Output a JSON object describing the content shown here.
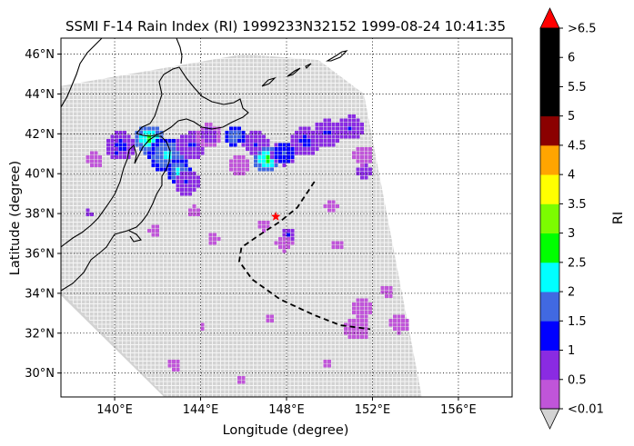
{
  "chart_data": {
    "type": "heatmap",
    "title": "SSMI F-14 Rain Index (RI) 1999233N32152 1999-08-24 10:41:35",
    "xlabel": "Longitude (degree)",
    "ylabel": "Latitude (degree)",
    "xlim": [
      137.5,
      158.5
    ],
    "ylim": [
      28.8,
      46.8
    ],
    "x_ticks": [
      {
        "value": 140,
        "label": "140°E"
      },
      {
        "value": 144,
        "label": "144°E"
      },
      {
        "value": 148,
        "label": "148°E"
      },
      {
        "value": 152,
        "label": "152°E"
      },
      {
        "value": 156,
        "label": "156°E"
      }
    ],
    "y_ticks": [
      {
        "value": 30,
        "label": "30°N"
      },
      {
        "value": 32,
        "label": "32°N"
      },
      {
        "value": 34,
        "label": "34°N"
      },
      {
        "value": 36,
        "label": "36°N"
      },
      {
        "value": 38,
        "label": "38°N"
      },
      {
        "value": 40,
        "label": "40°N"
      },
      {
        "value": 42,
        "label": "42°N"
      },
      {
        "value": 44,
        "label": "44°N"
      },
      {
        "value": 46,
        "label": "46°N"
      }
    ],
    "grid": "dotted",
    "colorbar": {
      "label": "RI",
      "boundaries": [
        0.01,
        0.5,
        1,
        1.5,
        2,
        2.5,
        3,
        3.5,
        4,
        4.5,
        5,
        5.5,
        6,
        6.5
      ],
      "tick_labels": [
        "<0.01",
        "0.5",
        "1",
        "1.5",
        "2",
        "2.5",
        "3",
        "3.5",
        "4",
        "4.5",
        "5",
        "5.5",
        "6",
        ">6.5"
      ],
      "colors": [
        "#c055d9",
        "#8a2be2",
        "#0000ff",
        "#4169e1",
        "#00ffff",
        "#00ff00",
        "#7cfc00",
        "#ffff00",
        "#ffa500",
        "#8b0000",
        "#000000",
        "#000000",
        "#000000"
      ],
      "under_color": "#d3d3d3",
      "over_color": "#ff0000"
    },
    "swath": {
      "corners": [
        [
          137.5,
          44.4
        ],
        [
          146.0,
          46.0
        ],
        [
          149.5,
          45.7
        ],
        [
          151.6,
          44.0
        ],
        [
          154.3,
          28.8
        ],
        [
          142.3,
          28.8
        ],
        [
          137.5,
          33.9
        ]
      ],
      "fill_color": "#d3d3d3"
    },
    "track": {
      "points": [
        [
          149.3,
          39.6
        ],
        [
          148.5,
          38.3
        ],
        [
          147.7,
          37.6
        ],
        [
          146.7,
          36.9
        ],
        [
          145.9,
          36.3
        ],
        [
          145.8,
          35.6
        ],
        [
          146.4,
          34.7
        ],
        [
          147.7,
          33.7
        ],
        [
          149.3,
          32.9
        ],
        [
          150.5,
          32.4
        ],
        [
          151.9,
          32.2
        ]
      ],
      "color": "#000000"
    },
    "storm_center": {
      "lon": 147.5,
      "lat": 37.85,
      "color": "#ff0000"
    },
    "rain_areas": [
      {
        "lon": 140.2,
        "lat": 41.5,
        "r": 0.7,
        "value": 1.2
      },
      {
        "lon": 141.5,
        "lat": 41.8,
        "r": 0.7,
        "value": 2.8
      },
      {
        "lon": 142.4,
        "lat": 41.0,
        "r": 0.9,
        "value": 2.3
      },
      {
        "lon": 142.9,
        "lat": 40.2,
        "r": 0.6,
        "value": 2.2
      },
      {
        "lon": 143.3,
        "lat": 39.6,
        "r": 0.6,
        "value": 1.1
      },
      {
        "lon": 143.5,
        "lat": 41.5,
        "r": 0.7,
        "value": 1.1
      },
      {
        "lon": 144.3,
        "lat": 42.0,
        "r": 0.6,
        "value": 0.7
      },
      {
        "lon": 145.5,
        "lat": 42.0,
        "r": 0.5,
        "value": 2.1
      },
      {
        "lon": 146.5,
        "lat": 41.6,
        "r": 0.6,
        "value": 1.1
      },
      {
        "lon": 147.0,
        "lat": 40.8,
        "r": 0.6,
        "value": 2.8
      },
      {
        "lon": 147.8,
        "lat": 41.1,
        "r": 0.6,
        "value": 1.6
      },
      {
        "lon": 148.8,
        "lat": 41.7,
        "r": 0.7,
        "value": 1.2
      },
      {
        "lon": 149.8,
        "lat": 42.1,
        "r": 0.7,
        "value": 1.1
      },
      {
        "lon": 150.9,
        "lat": 42.4,
        "r": 0.6,
        "value": 1.1
      },
      {
        "lon": 151.5,
        "lat": 40.2,
        "r": 0.4,
        "value": 1.1
      },
      {
        "lon": 148.0,
        "lat": 37.0,
        "r": 0.35,
        "value": 1.1
      },
      {
        "lon": 138.7,
        "lat": 38.1,
        "r": 0.2,
        "value": 1.1
      },
      {
        "lon": 140.0,
        "lat": 41.1,
        "r": 0.25,
        "value": 1.1
      },
      {
        "lon": 147.8,
        "lat": 36.6,
        "r": 0.4,
        "value": 0.3
      },
      {
        "lon": 151.4,
        "lat": 33.3,
        "r": 0.5,
        "value": 0.3
      },
      {
        "lon": 151.2,
        "lat": 32.3,
        "r": 0.6,
        "value": 0.3
      },
      {
        "lon": 153.2,
        "lat": 32.6,
        "r": 0.5,
        "value": 0.3
      },
      {
        "lon": 152.6,
        "lat": 34.2,
        "r": 0.3,
        "value": 0.3
      },
      {
        "lon": 141.8,
        "lat": 37.3,
        "r": 0.3,
        "value": 0.3
      },
      {
        "lon": 139.0,
        "lat": 40.8,
        "r": 0.4,
        "value": 0.3
      },
      {
        "lon": 143.6,
        "lat": 38.2,
        "r": 0.3,
        "value": 0.3
      },
      {
        "lon": 144.5,
        "lat": 36.8,
        "r": 0.3,
        "value": 0.3
      },
      {
        "lon": 151.5,
        "lat": 41.0,
        "r": 0.5,
        "value": 0.3
      },
      {
        "lon": 145.7,
        "lat": 40.5,
        "r": 0.5,
        "value": 0.3
      },
      {
        "lon": 146.8,
        "lat": 37.5,
        "r": 0.3,
        "value": 0.3
      },
      {
        "lon": 150.2,
        "lat": 36.5,
        "r": 0.3,
        "value": 0.3
      },
      {
        "lon": 150.0,
        "lat": 38.5,
        "r": 0.3,
        "value": 0.3
      },
      {
        "lon": 142.7,
        "lat": 30.5,
        "r": 0.3,
        "value": 0.3
      },
      {
        "lon": 145.8,
        "lat": 29.8,
        "r": 0.2,
        "value": 0.3
      },
      {
        "lon": 147.1,
        "lat": 32.8,
        "r": 0.25,
        "value": 0.3
      },
      {
        "lon": 144.0,
        "lat": 32.4,
        "r": 0.2,
        "value": 0.3
      },
      {
        "lon": 149.8,
        "lat": 30.5,
        "r": 0.2,
        "value": 0.3
      }
    ]
  }
}
